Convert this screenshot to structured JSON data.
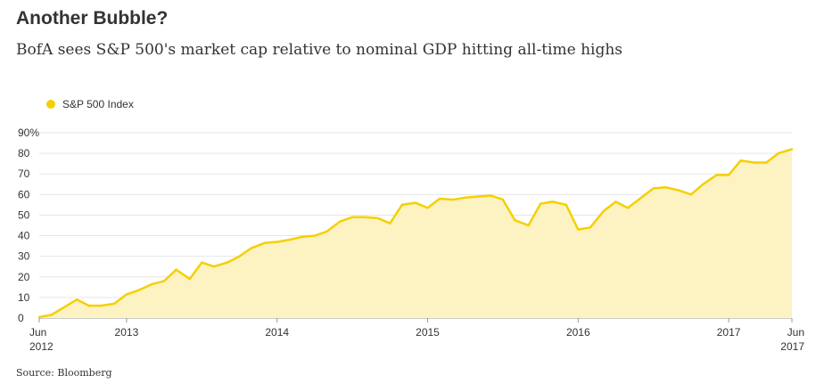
{
  "chart_data": {
    "type": "area",
    "title": "Another Bubble?",
    "subtitle": "BofA sees S&P 500's market cap relative to nominal GDP hitting all-time highs",
    "source": "Source: Bloomberg",
    "series": [
      {
        "name": "S&P 500 Index",
        "color": "#F5D000",
        "fill": "#FCF2C2",
        "values": [
          [
            2012.42,
            0.5
          ],
          [
            2012.5,
            1.5
          ],
          [
            2012.58,
            5
          ],
          [
            2012.67,
            9
          ],
          [
            2012.75,
            6
          ],
          [
            2012.83,
            6
          ],
          [
            2012.92,
            7
          ],
          [
            2013.0,
            11.5
          ],
          [
            2013.08,
            13.5
          ],
          [
            2013.17,
            16.5
          ],
          [
            2013.25,
            18
          ],
          [
            2013.33,
            23.5
          ],
          [
            2013.42,
            19
          ],
          [
            2013.5,
            27
          ],
          [
            2013.58,
            25
          ],
          [
            2013.67,
            27
          ],
          [
            2013.75,
            30
          ],
          [
            2013.83,
            34
          ],
          [
            2013.92,
            36.5
          ],
          [
            2014.0,
            37
          ],
          [
            2014.08,
            38
          ],
          [
            2014.17,
            39.5
          ],
          [
            2014.25,
            40
          ],
          [
            2014.33,
            42
          ],
          [
            2014.42,
            47
          ],
          [
            2014.5,
            49
          ],
          [
            2014.58,
            49
          ],
          [
            2014.67,
            48.5
          ],
          [
            2014.75,
            46
          ],
          [
            2014.83,
            55
          ],
          [
            2014.92,
            56
          ],
          [
            2015.0,
            53.5
          ],
          [
            2015.08,
            58
          ],
          [
            2015.17,
            57.5
          ],
          [
            2015.25,
            58.5
          ],
          [
            2015.33,
            59
          ],
          [
            2015.42,
            59.5
          ],
          [
            2015.5,
            57.5
          ],
          [
            2015.58,
            47.5
          ],
          [
            2015.67,
            45
          ],
          [
            2015.75,
            55.5
          ],
          [
            2015.83,
            56.5
          ],
          [
            2015.92,
            55
          ],
          [
            2016.0,
            43
          ],
          [
            2016.08,
            44
          ],
          [
            2016.17,
            52
          ],
          [
            2016.25,
            56.5
          ],
          [
            2016.33,
            53.5
          ],
          [
            2016.42,
            58.5
          ],
          [
            2016.5,
            63
          ],
          [
            2016.58,
            63.5
          ],
          [
            2016.67,
            62
          ],
          [
            2016.75,
            60
          ],
          [
            2016.83,
            65
          ],
          [
            2016.92,
            69.5
          ],
          [
            2017.0,
            69.5
          ],
          [
            2017.08,
            76.5
          ],
          [
            2017.17,
            75.5
          ],
          [
            2017.25,
            75.5
          ],
          [
            2017.33,
            80
          ],
          [
            2017.42,
            82
          ]
        ]
      }
    ],
    "xlim": [
      2012.42,
      2017.42
    ],
    "ylim": [
      0,
      90
    ],
    "yticks": [
      0,
      10,
      20,
      30,
      40,
      50,
      60,
      70,
      80,
      90
    ],
    "ytick_labels": [
      "0",
      "10",
      "20",
      "30",
      "40",
      "50",
      "60",
      "70",
      "80",
      "90%"
    ],
    "xticks": [
      {
        "x": 2012.42,
        "label": "Jun",
        "label2": "2012"
      },
      {
        "x": 2013.0,
        "label": "2013",
        "label2": ""
      },
      {
        "x": 2014.0,
        "label": "2014",
        "label2": ""
      },
      {
        "x": 2015.0,
        "label": "2015",
        "label2": ""
      },
      {
        "x": 2016.0,
        "label": "2016",
        "label2": ""
      },
      {
        "x": 2017.0,
        "label": "2017",
        "label2": ""
      },
      {
        "x": 2017.42,
        "label": "Jun",
        "label2": "2017"
      }
    ],
    "grid": true,
    "legend": "top-left"
  }
}
